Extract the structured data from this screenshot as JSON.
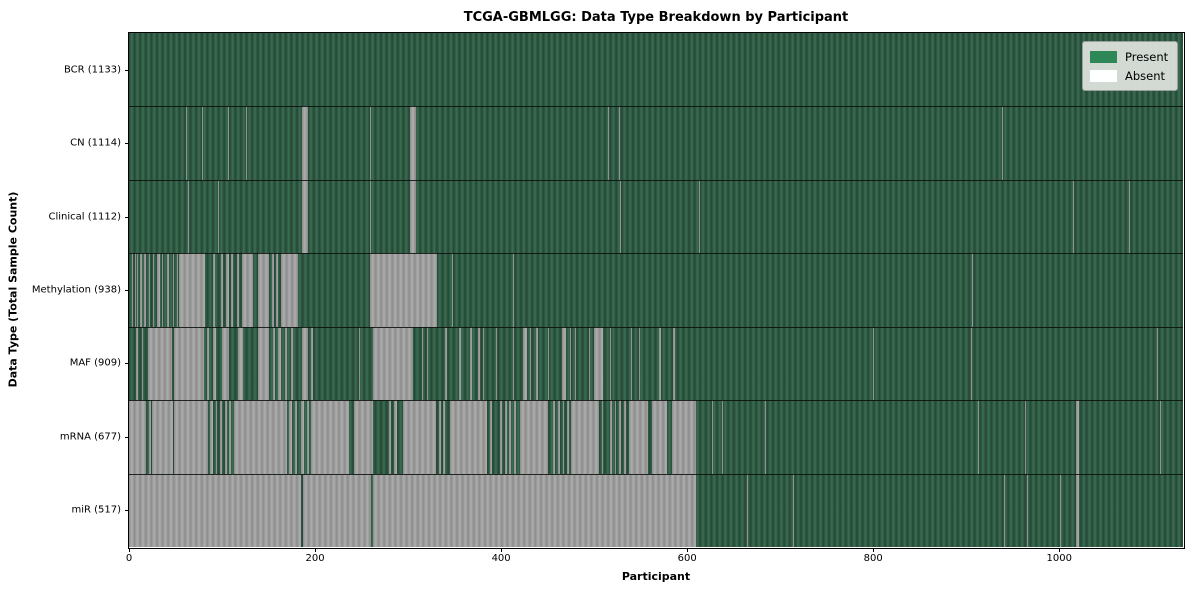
{
  "title": "TCGA-GBMLGG: Data Type Breakdown by Participant",
  "xlabel": "Participant",
  "ylabel": "Data Type (Total Sample Count)",
  "legend": {
    "present_label": "Present",
    "absent_label": "Absent",
    "present_color": "#2e8757",
    "absent_color": "#ffffff"
  },
  "colors": {
    "present_fill_light": "#3c6e53",
    "present_fill_dark": "#234735",
    "absent_fill_light": "#aeaeae",
    "absent_fill_dark": "#8c8c8c",
    "row_separator": "#141414",
    "plot_border": "#000000",
    "background": "#ffffff"
  },
  "chart_data": {
    "type": "heatmap",
    "x_max": 1133,
    "x_ticks": [
      0,
      200,
      400,
      600,
      800,
      1000
    ],
    "grid": false,
    "legend_position": "upper right",
    "rows": [
      {
        "label": "BCR (1133)",
        "total": 1133,
        "present_count": 1133,
        "absent_ranges": []
      },
      {
        "label": "CN (1114)",
        "total": 1133,
        "present_count": 1114,
        "absent_ranges": [
          [
            61,
            62
          ],
          [
            78,
            79
          ],
          [
            106,
            107
          ],
          [
            126,
            127
          ],
          [
            186,
            192
          ],
          [
            259,
            260
          ],
          [
            302,
            308
          ],
          [
            515,
            516
          ],
          [
            527,
            528
          ],
          [
            938,
            939
          ]
        ]
      },
      {
        "label": "Clinical (1112)",
        "total": 1133,
        "present_count": 1112,
        "absent_ranges": [
          [
            63,
            64
          ],
          [
            96,
            97
          ],
          [
            186,
            192
          ],
          [
            259,
            260
          ],
          [
            302,
            308
          ],
          [
            528,
            529
          ],
          [
            613,
            614
          ],
          [
            1015,
            1016
          ],
          [
            1075,
            1076
          ]
        ]
      },
      {
        "label": "Methylation (938)",
        "total": 1133,
        "present_count": 938,
        "absent_ranges": [
          [
            3,
            4
          ],
          [
            6,
            7
          ],
          [
            9,
            10
          ],
          [
            12,
            14
          ],
          [
            16,
            18
          ],
          [
            21,
            23
          ],
          [
            26,
            27
          ],
          [
            30,
            33
          ],
          [
            36,
            37
          ],
          [
            41,
            43
          ],
          [
            47,
            48
          ],
          [
            52,
            53
          ],
          [
            54,
            82
          ],
          [
            90,
            92
          ],
          [
            99,
            101
          ],
          [
            104,
            107
          ],
          [
            110,
            112
          ],
          [
            116,
            118
          ],
          [
            122,
            133
          ],
          [
            139,
            151
          ],
          [
            154,
            156
          ],
          [
            158,
            160
          ],
          [
            163,
            182
          ],
          [
            259,
            331
          ],
          [
            347,
            348
          ],
          [
            413,
            414
          ],
          [
            906,
            907
          ]
        ]
      },
      {
        "label": "MAF (909)",
        "total": 1133,
        "present_count": 909,
        "absent_ranges": [
          [
            8,
            10
          ],
          [
            14,
            15
          ],
          [
            20,
            46
          ],
          [
            48,
            81
          ],
          [
            84,
            86
          ],
          [
            90,
            93
          ],
          [
            100,
            107
          ],
          [
            117,
            123
          ],
          [
            139,
            151
          ],
          [
            155,
            157
          ],
          [
            160,
            163
          ],
          [
            168,
            170
          ],
          [
            174,
            176
          ],
          [
            186,
            192
          ],
          [
            196,
            198
          ],
          [
            247,
            248
          ],
          [
            262,
            305
          ],
          [
            315,
            316
          ],
          [
            320,
            321
          ],
          [
            340,
            342
          ],
          [
            355,
            357
          ],
          [
            367,
            369
          ],
          [
            375,
            377
          ],
          [
            380,
            381
          ],
          [
            395,
            396
          ],
          [
            413,
            414
          ],
          [
            423,
            428
          ],
          [
            431,
            432
          ],
          [
            437,
            440
          ],
          [
            450,
            452
          ],
          [
            465,
            470
          ],
          [
            474,
            475
          ],
          [
            479,
            481
          ],
          [
            495,
            496
          ],
          [
            500,
            510
          ],
          [
            517,
            518
          ],
          [
            540,
            541
          ],
          [
            548,
            549
          ],
          [
            570,
            572
          ],
          [
            585,
            587
          ],
          [
            800,
            801
          ],
          [
            905,
            906
          ],
          [
            1105,
            1106
          ]
        ]
      },
      {
        "label": "mRNA (677)",
        "total": 1133,
        "present_count": 677,
        "absent_ranges": [
          [
            0,
            18
          ],
          [
            22,
            24
          ],
          [
            25,
            47
          ],
          [
            48,
            85
          ],
          [
            87,
            90
          ],
          [
            93,
            95
          ],
          [
            98,
            100
          ],
          [
            103,
            105
          ],
          [
            108,
            110
          ],
          [
            113,
            170
          ],
          [
            172,
            175
          ],
          [
            178,
            181
          ],
          [
            185,
            188
          ],
          [
            191,
            193
          ],
          [
            196,
            236
          ],
          [
            242,
            262
          ],
          [
            279,
            282
          ],
          [
            285,
            288
          ],
          [
            295,
            330
          ],
          [
            333,
            335
          ],
          [
            338,
            340
          ],
          [
            345,
            385
          ],
          [
            388,
            390
          ],
          [
            399,
            401
          ],
          [
            404,
            406
          ],
          [
            409,
            411
          ],
          [
            414,
            416
          ],
          [
            420,
            450
          ],
          [
            456,
            458
          ],
          [
            461,
            463
          ],
          [
            466,
            468
          ],
          [
            471,
            473
          ],
          [
            475,
            505
          ],
          [
            508,
            510
          ],
          [
            517,
            519
          ],
          [
            522,
            524
          ],
          [
            527,
            529
          ],
          [
            532,
            534
          ],
          [
            537,
            558
          ],
          [
            562,
            578
          ],
          [
            584,
            610
          ],
          [
            627,
            628
          ],
          [
            637,
            638
          ],
          [
            684,
            685
          ],
          [
            913,
            914
          ],
          [
            963,
            964
          ],
          [
            1018,
            1021
          ],
          [
            1108,
            1109
          ]
        ]
      },
      {
        "label": "miR (517)",
        "total": 1133,
        "present_count": 517,
        "absent_ranges": [
          [
            0,
            185
          ],
          [
            187,
            260
          ],
          [
            262,
            610
          ],
          [
            664,
            665
          ],
          [
            714,
            715
          ],
          [
            941,
            942
          ],
          [
            965,
            966
          ],
          [
            1001,
            1002
          ],
          [
            1018,
            1021
          ]
        ]
      }
    ]
  }
}
